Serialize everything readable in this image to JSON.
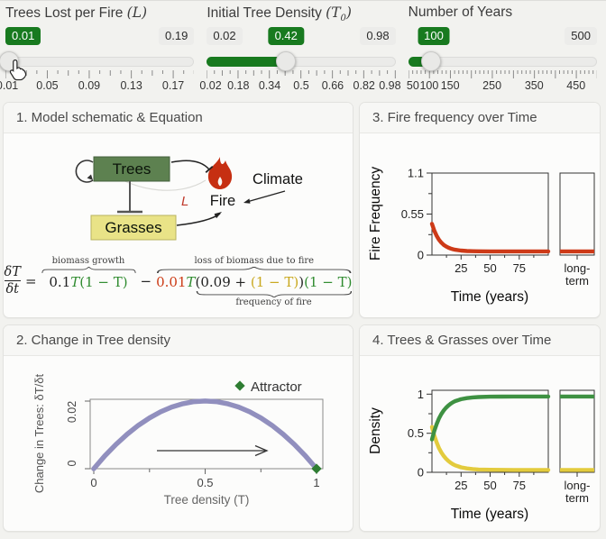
{
  "colors": {
    "accent_green": "#187a1f",
    "trees_box": "#5d8150",
    "grasses_box": "#e9e387",
    "fire_red": "#c62f12",
    "curve_red": "#cd3a18",
    "curve_green": "#3e9142",
    "curve_yellow": "#e3cb3d",
    "curve_purple": "#918fbe",
    "attractor_green": "#2e7d32"
  },
  "sliders": [
    {
      "title": "Trees Lost per Fire ",
      "math_pre": "(L",
      "sub": "",
      "math_post": ")",
      "value": "0.01",
      "max": "0.19",
      "ticks": [
        "0.01",
        "0.05",
        "0.09",
        "0.13",
        "0.17"
      ]
    },
    {
      "title": "Initial Tree Density ",
      "math_pre": "(T",
      "sub": "0",
      "math_post": ")",
      "min": "0.02",
      "value": "0.42",
      "max": "0.98",
      "ticks": [
        "0.02",
        "0.18",
        "0.34",
        "0.5",
        "0.66",
        "0.82",
        "0.98"
      ]
    },
    {
      "title": "Number of Years",
      "math_pre": "",
      "sub": "",
      "math_post": "",
      "value": "100",
      "max": "500",
      "ticks": [
        "50",
        "100",
        "150",
        "250",
        "350",
        "450"
      ]
    }
  ],
  "panels": {
    "p1": {
      "title": "1. Model schematic & Equation",
      "schematic": {
        "trees": "Trees",
        "grasses": "Grasses",
        "fire": "Fire",
        "climate": "Climate",
        "loss_label": "L"
      },
      "equation": {
        "num": "δT",
        "den": "δt",
        "equals": "=",
        "growth_label": "biomass growth",
        "t1_coef": "0.1",
        "t1_var": "T",
        "t1_rest": "(1 − T)",
        "minus": "−",
        "loss_label": "loss of biomass due to fire",
        "t2_coef": "0.01",
        "t2_var": "T",
        "t2_open": "(0.09 + ",
        "t2_yellow": "(1 − T)",
        "t2_close": ")",
        "t2_green": "(1 − T)",
        "freq_label": "frequency of fire"
      }
    },
    "p2": {
      "title": "2. Change in Tree density"
    },
    "p3": {
      "title": "3. Fire frequency over Time"
    },
    "p4": {
      "title": "4. Trees & Grasses over Time"
    }
  },
  "chart_data": [
    {
      "id": "change-in-tree-density",
      "type": "line",
      "xlabel": "Tree density (T)",
      "ylabel": "Change in Trees: δT/δt",
      "xlim": [
        0,
        1
      ],
      "ylim": [
        0,
        0.0205
      ],
      "xtick_labels": [
        "0",
        "0.5",
        "1"
      ],
      "ytick_labels": [
        "0.02",
        "0"
      ],
      "legend_label": "Attractor",
      "legend_marker": "diamond",
      "legend_color": "#2e7d32",
      "attractor_point": [
        1,
        0
      ],
      "arrow": {
        "from": [
          0.28,
          0.0055
        ],
        "to": [
          0.78,
          0.0055
        ]
      },
      "series": [
        {
          "name": "dT/dt",
          "color": "#918fbe",
          "points": [
            [
              0,
              0
            ],
            [
              0.05,
              0.0038
            ],
            [
              0.1,
              0.0072
            ],
            [
              0.15,
              0.0102
            ],
            [
              0.2,
              0.0128
            ],
            [
              0.25,
              0.015
            ],
            [
              0.3,
              0.0168
            ],
            [
              0.35,
              0.0182
            ],
            [
              0.4,
              0.0192
            ],
            [
              0.45,
              0.0198
            ],
            [
              0.5,
              0.02
            ],
            [
              0.55,
              0.0198
            ],
            [
              0.6,
              0.0192
            ],
            [
              0.65,
              0.0182
            ],
            [
              0.7,
              0.0168
            ],
            [
              0.75,
              0.015
            ],
            [
              0.8,
              0.0128
            ],
            [
              0.85,
              0.0102
            ],
            [
              0.9,
              0.0072
            ],
            [
              0.95,
              0.0038
            ],
            [
              1,
              0
            ]
          ]
        }
      ]
    },
    {
      "id": "fire-frequency",
      "type": "line",
      "xlabel": "Time (years)",
      "ylabel": "Fire Frequency",
      "xlim": [
        0,
        100
      ],
      "ylim": [
        0,
        1.1
      ],
      "xtick_labels": [
        "25",
        "50",
        "75"
      ],
      "ytick_labels": [
        "1.1",
        "0.55",
        "0"
      ],
      "lt1": "long-",
      "lt2": "term",
      "series": [
        {
          "name": "fire frequency",
          "color": "#cd3a18",
          "long_term_value": 0.05,
          "points": [
            [
              0,
              0.42
            ],
            [
              2,
              0.328
            ],
            [
              4,
              0.259
            ],
            [
              6,
              0.207
            ],
            [
              8,
              0.168
            ],
            [
              10,
              0.138
            ],
            [
              12,
              0.117
            ],
            [
              14,
              0.1
            ],
            [
              16,
              0.088
            ],
            [
              18,
              0.078
            ],
            [
              20,
              0.071
            ],
            [
              25,
              0.06
            ],
            [
              30,
              0.055
            ],
            [
              35,
              0.052
            ],
            [
              40,
              0.051
            ],
            [
              50,
              0.05
            ],
            [
              60,
              0.05
            ],
            [
              70,
              0.05
            ],
            [
              80,
              0.05
            ],
            [
              90,
              0.05
            ],
            [
              100,
              0.05
            ]
          ],
          "lt_points": [
            [
              0,
              0.05
            ],
            [
              1,
              0.05
            ]
          ]
        }
      ]
    },
    {
      "id": "trees-grasses",
      "type": "line",
      "xlabel": "Time (years)",
      "ylabel": "Density",
      "xlim": [
        0,
        100
      ],
      "ylim": [
        0,
        1.05
      ],
      "xtick_labels": [
        "25",
        "50",
        "75"
      ],
      "ytick_labels": [
        "1",
        "0.5",
        "0"
      ],
      "lt1": "long-",
      "lt2": "term",
      "series": [
        {
          "name": "Trees",
          "color": "#3e9142",
          "long_term_value": 0.97,
          "points": [
            [
              0,
              0.42
            ],
            [
              2,
              0.53
            ],
            [
              4,
              0.617
            ],
            [
              6,
              0.688
            ],
            [
              8,
              0.744
            ],
            [
              10,
              0.789
            ],
            [
              12,
              0.825
            ],
            [
              14,
              0.854
            ],
            [
              16,
              0.877
            ],
            [
              18,
              0.896
            ],
            [
              20,
              0.911
            ],
            [
              25,
              0.936
            ],
            [
              30,
              0.95
            ],
            [
              35,
              0.959
            ],
            [
              40,
              0.964
            ],
            [
              50,
              0.968
            ],
            [
              60,
              0.969
            ],
            [
              70,
              0.97
            ],
            [
              80,
              0.97
            ],
            [
              90,
              0.97
            ],
            [
              100,
              0.97
            ]
          ],
          "lt_points": [
            [
              0,
              0.97
            ],
            [
              1,
              0.97
            ]
          ]
        },
        {
          "name": "Grasses",
          "color": "#e3cb3d",
          "long_term_value": 0.03,
          "points": [
            [
              0,
              0.58
            ],
            [
              2,
              0.47
            ],
            [
              4,
              0.383
            ],
            [
              6,
              0.312
            ],
            [
              8,
              0.256
            ],
            [
              10,
              0.211
            ],
            [
              12,
              0.175
            ],
            [
              14,
              0.146
            ],
            [
              16,
              0.123
            ],
            [
              18,
              0.104
            ],
            [
              20,
              0.089
            ],
            [
              25,
              0.064
            ],
            [
              30,
              0.05
            ],
            [
              35,
              0.041
            ],
            [
              40,
              0.036
            ],
            [
              50,
              0.032
            ],
            [
              60,
              0.031
            ],
            [
              70,
              0.03
            ],
            [
              80,
              0.03
            ],
            [
              90,
              0.03
            ],
            [
              100,
              0.03
            ]
          ],
          "lt_points": [
            [
              0,
              0.03
            ],
            [
              1,
              0.03
            ]
          ]
        }
      ]
    }
  ]
}
